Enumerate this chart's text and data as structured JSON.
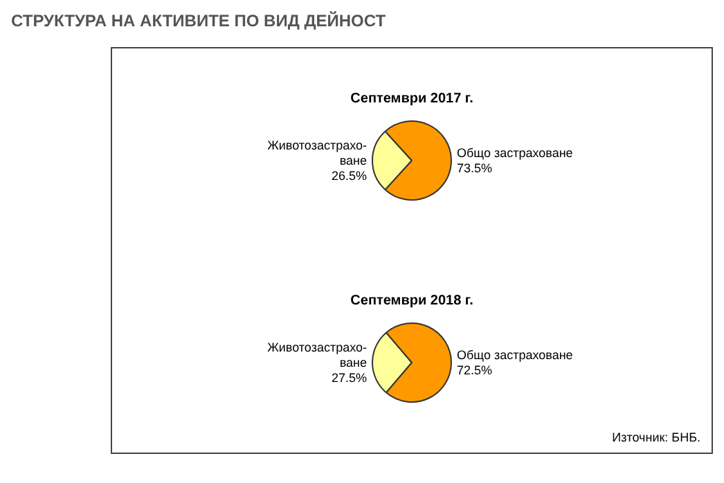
{
  "chart_data": [
    {
      "type": "pie",
      "title": "СТРУКТУРА НА АКТИВИТЕ ПО ВИД ДЕЙНОСТ",
      "subtitle": "Септември 2017 г.",
      "categories": [
        "Животозастрахо-ване",
        "Общо застраховане"
      ],
      "values": [
        26.5,
        73.5
      ],
      "colors": [
        "#ffff99",
        "#ff9900"
      ],
      "value_labels": [
        "26.5%",
        "73.5%"
      ],
      "legend": false
    },
    {
      "type": "pie",
      "title": "Септември 2018 г.",
      "categories": [
        "Животозастрахо-ване",
        "Общо застраховане"
      ],
      "values": [
        27.5,
        72.5
      ],
      "colors": [
        "#ffff99",
        "#ff9900"
      ],
      "value_labels": [
        "27.5%",
        "72.5%"
      ],
      "legend": false,
      "annotations": [
        "Източник: БНБ."
      ]
    }
  ]
}
